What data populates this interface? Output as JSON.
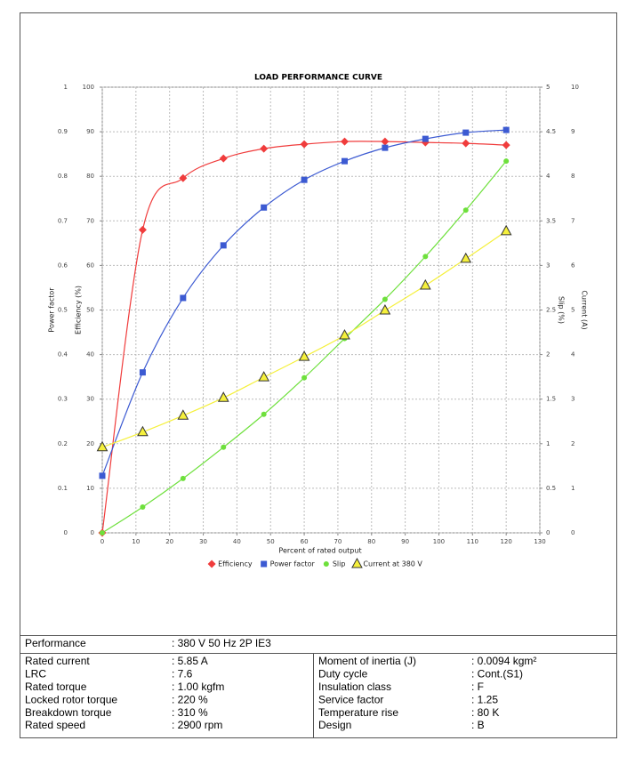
{
  "chart_data": {
    "type": "line",
    "title": "LOAD PERFORMANCE CURVE",
    "x_label": "Percent of rated output",
    "x": [
      0,
      12,
      24,
      36,
      48,
      60,
      72,
      84,
      96,
      108,
      120
    ],
    "xlim": [
      0,
      130
    ],
    "xticks": [
      0,
      10,
      20,
      30,
      40,
      50,
      60,
      70,
      80,
      90,
      100,
      110,
      120,
      130
    ],
    "grid": true,
    "legend": "bottom",
    "y_axes": [
      {
        "label": "Power factor",
        "side": "left",
        "lim": [
          0,
          1
        ],
        "ticks": [
          0,
          0.1,
          0.2,
          0.3,
          0.4,
          0.5,
          0.6,
          0.7,
          0.8,
          0.9,
          1
        ]
      },
      {
        "label": "Efficiency (%)",
        "side": "left",
        "lim": [
          0,
          100
        ],
        "ticks": [
          0,
          10,
          20,
          30,
          40,
          50,
          60,
          70,
          80,
          90,
          100
        ]
      },
      {
        "label": "Slip (%)",
        "side": "right",
        "lim": [
          0,
          5
        ],
        "ticks": [
          0,
          0.5,
          1,
          1.5,
          2,
          2.5,
          3,
          3.5,
          4,
          4.5,
          5
        ]
      },
      {
        "label": "Current (A)",
        "side": "right",
        "lim": [
          0,
          10
        ],
        "ticks": [
          0,
          1,
          2,
          3,
          4,
          5,
          6,
          7,
          8,
          9,
          10
        ]
      }
    ],
    "series": [
      {
        "name": "Efficiency",
        "color": "#f03c3c",
        "marker": "diamond",
        "axis": 1,
        "values": [
          0,
          68,
          79.6,
          84,
          86.2,
          87.2,
          87.8,
          87.8,
          87.6,
          87.4,
          87
        ]
      },
      {
        "name": "Power factor",
        "color": "#3c5ad2",
        "marker": "square",
        "axis": 0,
        "values": [
          0.128,
          0.36,
          0.527,
          0.645,
          0.73,
          0.792,
          0.834,
          0.864,
          0.884,
          0.898,
          0.904
        ]
      },
      {
        "name": "Slip",
        "color": "#6ee03c",
        "marker": "circle",
        "axis": 2,
        "values": [
          0,
          0.29,
          0.61,
          0.96,
          1.33,
          1.74,
          2.18,
          2.62,
          3.1,
          3.62,
          4.17
        ]
      },
      {
        "name": "Current at 380 V",
        "color": "#f5f03c",
        "marker": "triangle",
        "axis": 3,
        "values": [
          1.92,
          2.26,
          2.63,
          3.03,
          3.49,
          3.95,
          4.43,
          4.99,
          5.55,
          6.15,
          6.77
        ]
      }
    ]
  },
  "table": {
    "header": [
      "Performance",
      ": 380 V 50 Hz 2P IE3"
    ],
    "rows": [
      [
        "Rated current",
        ": 5.85 A",
        "Moment of inertia (J)",
        ": 0.0094 kgm²"
      ],
      [
        "LRC",
        ": 7.6",
        "Duty cycle",
        ": Cont.(S1)"
      ],
      [
        "Rated torque",
        ": 1.00 kgfm",
        "Insulation class",
        ": F"
      ],
      [
        "Locked rotor torque",
        ": 220 %",
        "Service factor",
        ": 1.25"
      ],
      [
        "Breakdown torque",
        ": 310 %",
        "Temperature rise",
        ": 80 K"
      ],
      [
        "Rated speed",
        ": 2900 rpm",
        "Design",
        ": B"
      ]
    ]
  }
}
